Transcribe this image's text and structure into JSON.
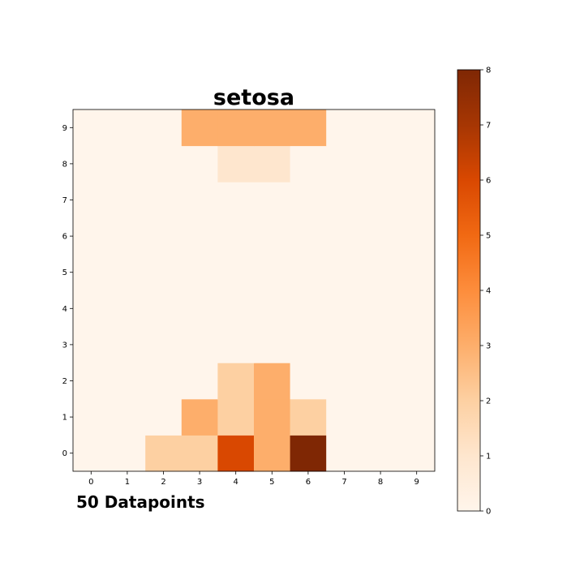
{
  "chart_data": {
    "type": "heatmap",
    "title": "setosa",
    "footer": "50 Datapoints",
    "x": [
      0,
      1,
      2,
      3,
      4,
      5,
      6,
      7,
      8,
      9
    ],
    "y": [
      0,
      1,
      2,
      3,
      4,
      5,
      6,
      7,
      8,
      9
    ],
    "x_tick_labels": [
      "0",
      "1",
      "2",
      "3",
      "4",
      "5",
      "6",
      "7",
      "8",
      "9"
    ],
    "y_tick_labels": [
      "0",
      "1",
      "2",
      "3",
      "4",
      "5",
      "6",
      "7",
      "8",
      "9"
    ],
    "values": [
      [
        0,
        0,
        2,
        2,
        6,
        3,
        8,
        0,
        0,
        0
      ],
      [
        0,
        0,
        0,
        3,
        2,
        3,
        2,
        0,
        0,
        0
      ],
      [
        0,
        0,
        0,
        0,
        2,
        3,
        0,
        0,
        0,
        0
      ],
      [
        0,
        0,
        0,
        0,
        0,
        0,
        0,
        0,
        0,
        0
      ],
      [
        0,
        0,
        0,
        0,
        0,
        0,
        0,
        0,
        0,
        0
      ],
      [
        0,
        0,
        0,
        0,
        0,
        0,
        0,
        0,
        0,
        0
      ],
      [
        0,
        0,
        0,
        0,
        0,
        0,
        0,
        0,
        0,
        0
      ],
      [
        0,
        0,
        0,
        0,
        0,
        0,
        0,
        0,
        0,
        0
      ],
      [
        0,
        0,
        0,
        0,
        1,
        1,
        0,
        0,
        0,
        0
      ],
      [
        0,
        0,
        0,
        3,
        3,
        3,
        3,
        0,
        0,
        0
      ]
    ],
    "colormap": "Oranges",
    "colorbar": {
      "range": [
        0,
        8
      ],
      "tick_labels": [
        "0",
        "1",
        "2",
        "3",
        "4",
        "5",
        "6",
        "7",
        "8"
      ]
    },
    "grid": false
  }
}
